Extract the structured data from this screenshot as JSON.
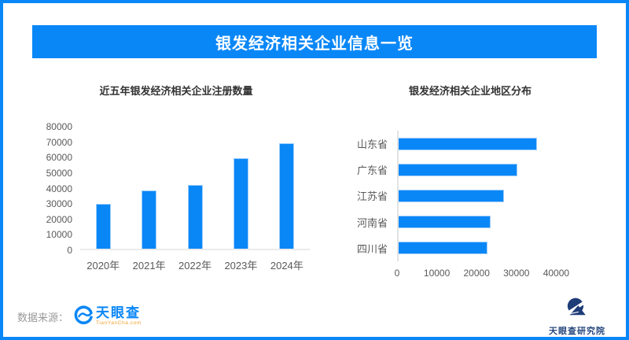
{
  "page": {
    "border_color": "#0a87f7",
    "background": "#ffffff"
  },
  "header": {
    "title": "银发经济相关企业信息一览",
    "bg_color": "#0a87f7",
    "text_color": "#ffffff"
  },
  "chart_data": [
    {
      "type": "bar",
      "orientation": "vertical",
      "title": "近五年银发经济相关企业注册数量",
      "categories": [
        "2020年",
        "2021年",
        "2022年",
        "2023年",
        "2024年"
      ],
      "values": [
        29500,
        38000,
        42000,
        59500,
        69000
      ],
      "ylim": [
        0,
        80000
      ],
      "yticks": [
        0,
        10000,
        20000,
        30000,
        40000,
        50000,
        60000,
        70000,
        80000
      ],
      "bar_color": "#0a87f7",
      "grid": false,
      "legend": "none"
    },
    {
      "type": "bar",
      "orientation": "horizontal",
      "title": "银发经济相关企业地区分布",
      "categories": [
        "山东省",
        "广东省",
        "江苏省",
        "河南省",
        "四川省"
      ],
      "values": [
        35000,
        30000,
        26700,
        23300,
        22500
      ],
      "xlim": [
        0,
        50000
      ],
      "xticks": [
        0,
        10000,
        20000,
        30000,
        40000
      ],
      "bar_color": "#0a87f7",
      "grid": false,
      "legend": "none"
    }
  ],
  "footer": {
    "source_label": "数据来源：",
    "tianyancha": {
      "name": "天眼查",
      "domain": "TianYanCha.com",
      "brand_blue": "#0a87f7",
      "domain_color": "#f0a32f"
    },
    "institute": {
      "name": "天眼查研究院",
      "color": "#27477d"
    }
  }
}
